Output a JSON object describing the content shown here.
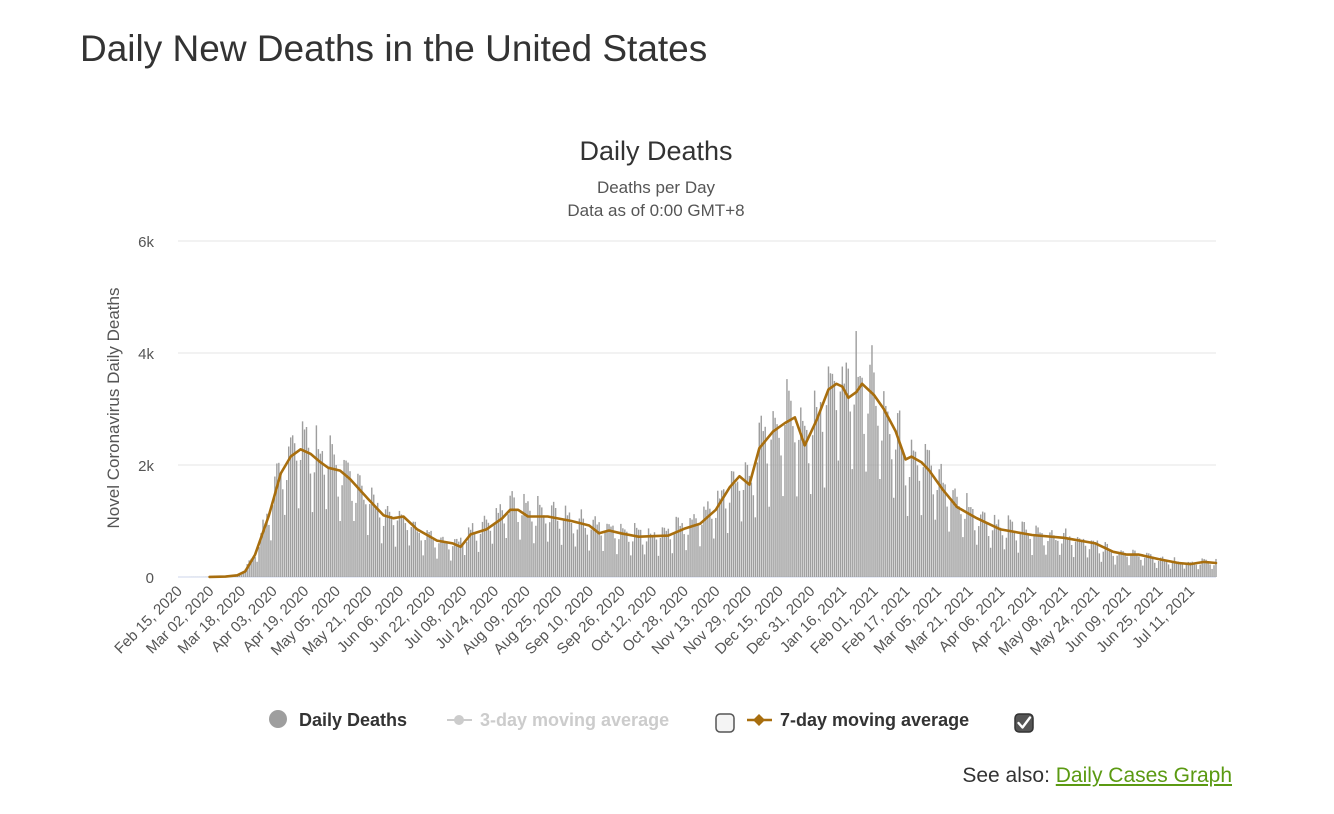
{
  "page": {
    "title": "Daily New Deaths in the United States",
    "see_also_prefix": "See also:",
    "see_also_link": "Daily Cases Graph"
  },
  "colors": {
    "bars": "#9e9e9e",
    "ma7": "#a86e0e",
    "ma3_disabled": "#cccccc",
    "grid": "#e6e6e6",
    "text": "#333333",
    "link": "#5b9a12"
  },
  "chart_data": {
    "type": "bar",
    "title": "Daily Deaths",
    "subtitle": [
      "Deaths per Day",
      "Data as of 0:00 GMT+8"
    ],
    "ylabel": "Novel Coronavirus Daily Deaths",
    "ylim": [
      0,
      6000
    ],
    "yticks": [
      0,
      2000,
      4000,
      6000
    ],
    "ytick_labels": [
      "0",
      "2k",
      "4k",
      "6k"
    ],
    "xlim": [
      "2020-02-15",
      "2021-07-24"
    ],
    "x_tick_labels": [
      "Feb 15, 2020",
      "Mar 02, 2020",
      "Mar 18, 2020",
      "Apr 03, 2020",
      "Apr 19, 2020",
      "May 05, 2020",
      "May 21, 2020",
      "Jun 06, 2020",
      "Jun 22, 2020",
      "Jul 08, 2020",
      "Jul 24, 2020",
      "Aug 09, 2020",
      "Aug 25, 2020",
      "Sep 10, 2020",
      "Sep 26, 2020",
      "Oct 12, 2020",
      "Oct 28, 2020",
      "Nov 13, 2020",
      "Nov 29, 2020",
      "Dec 15, 2020",
      "Dec 31, 2020",
      "Jan 16, 2021",
      "Feb 01, 2021",
      "Feb 17, 2021",
      "Mar 05, 2021",
      "Mar 21, 2021",
      "Apr 06, 2021",
      "Apr 22, 2021",
      "May 08, 2021",
      "May 24, 2021",
      "Jun 09, 2021",
      "Jun 25, 2021",
      "Jul 11, 2021"
    ],
    "grid": true,
    "legend_placement": "bottom-center",
    "series": [
      {
        "name": "Daily Deaths",
        "type": "bar",
        "visible": true,
        "daily": true,
        "start": "2020-02-15",
        "end": "2021-07-24",
        "anchors": [
          [
            "2020-02-15",
            0
          ],
          [
            "2020-03-02",
            2
          ],
          [
            "2020-03-12",
            10
          ],
          [
            "2020-03-18",
            50
          ],
          [
            "2020-03-25",
            400
          ],
          [
            "2020-04-01",
            1100
          ],
          [
            "2020-04-07",
            1900
          ],
          [
            "2020-04-12",
            2150
          ],
          [
            "2020-04-17",
            2300
          ],
          [
            "2020-04-22",
            2200
          ],
          [
            "2020-05-01",
            1950
          ],
          [
            "2020-05-10",
            1800
          ],
          [
            "2020-05-21",
            1350
          ],
          [
            "2020-06-01",
            1000
          ],
          [
            "2020-06-08",
            1050
          ],
          [
            "2020-06-15",
            800
          ],
          [
            "2020-06-25",
            650
          ],
          [
            "2020-07-05",
            550
          ],
          [
            "2020-07-12",
            780
          ],
          [
            "2020-07-24",
            1000
          ],
          [
            "2020-08-01",
            1200
          ],
          [
            "2020-08-10",
            1100
          ],
          [
            "2020-08-25",
            1050
          ],
          [
            "2020-09-10",
            900
          ],
          [
            "2020-09-26",
            780
          ],
          [
            "2020-10-12",
            720
          ],
          [
            "2020-10-28",
            850
          ],
          [
            "2020-11-13",
            1200
          ],
          [
            "2020-11-25",
            1700
          ],
          [
            "2020-11-30",
            1650
          ],
          [
            "2020-12-07",
            2350
          ],
          [
            "2020-12-15",
            2600
          ],
          [
            "2020-12-23",
            2850
          ],
          [
            "2020-12-28",
            2400
          ],
          [
            "2021-01-03",
            2800
          ],
          [
            "2021-01-09",
            3350
          ],
          [
            "2021-01-14",
            3400
          ],
          [
            "2021-01-18",
            3200
          ],
          [
            "2021-01-24",
            3350
          ],
          [
            "2021-02-01",
            3200
          ],
          [
            "2021-02-10",
            2600
          ],
          [
            "2021-02-17",
            2100
          ],
          [
            "2021-02-25",
            2050
          ],
          [
            "2021-03-05",
            1700
          ],
          [
            "2021-03-15",
            1300
          ],
          [
            "2021-03-25",
            1050
          ],
          [
            "2021-04-06",
            850
          ],
          [
            "2021-04-22",
            750
          ],
          [
            "2021-05-08",
            680
          ],
          [
            "2021-05-24",
            580
          ],
          [
            "2021-06-05",
            400
          ],
          [
            "2021-06-15",
            380
          ],
          [
            "2021-06-25",
            300
          ],
          [
            "2021-07-11",
            230
          ],
          [
            "2021-07-18",
            260
          ],
          [
            "2021-07-24",
            250
          ]
        ]
      },
      {
        "name": "3-day moving average",
        "type": "line",
        "visible": false,
        "checkbox_checked": false
      },
      {
        "name": "7-day moving average",
        "type": "line",
        "visible": true,
        "checkbox_checked": true,
        "points": [
          [
            "2020-03-02",
            2
          ],
          [
            "2020-03-10",
            8
          ],
          [
            "2020-03-16",
            30
          ],
          [
            "2020-03-20",
            100
          ],
          [
            "2020-03-25",
            400
          ],
          [
            "2020-04-01",
            1100
          ],
          [
            "2020-04-07",
            1850
          ],
          [
            "2020-04-12",
            2150
          ],
          [
            "2020-04-17",
            2280
          ],
          [
            "2020-04-22",
            2200
          ],
          [
            "2020-04-27",
            2050
          ],
          [
            "2020-05-01",
            1950
          ],
          [
            "2020-05-07",
            1900
          ],
          [
            "2020-05-12",
            1750
          ],
          [
            "2020-05-21",
            1400
          ],
          [
            "2020-05-29",
            1100
          ],
          [
            "2020-06-03",
            1050
          ],
          [
            "2020-06-08",
            1080
          ],
          [
            "2020-06-15",
            850
          ],
          [
            "2020-06-25",
            650
          ],
          [
            "2020-07-03",
            600
          ],
          [
            "2020-07-07",
            540
          ],
          [
            "2020-07-12",
            760
          ],
          [
            "2020-07-20",
            850
          ],
          [
            "2020-07-28",
            1050
          ],
          [
            "2020-08-01",
            1200
          ],
          [
            "2020-08-05",
            1200
          ],
          [
            "2020-08-10",
            1080
          ],
          [
            "2020-08-20",
            1080
          ],
          [
            "2020-09-01",
            1000
          ],
          [
            "2020-09-10",
            920
          ],
          [
            "2020-09-15",
            780
          ],
          [
            "2020-09-20",
            830
          ],
          [
            "2020-09-26",
            780
          ],
          [
            "2020-10-05",
            720
          ],
          [
            "2020-10-20",
            740
          ],
          [
            "2020-10-28",
            860
          ],
          [
            "2020-11-05",
            950
          ],
          [
            "2020-11-13",
            1200
          ],
          [
            "2020-11-20",
            1600
          ],
          [
            "2020-11-25",
            1800
          ],
          [
            "2020-11-30",
            1650
          ],
          [
            "2020-12-05",
            2300
          ],
          [
            "2020-12-12",
            2600
          ],
          [
            "2020-12-18",
            2750
          ],
          [
            "2020-12-23",
            2850
          ],
          [
            "2020-12-28",
            2350
          ],
          [
            "2021-01-03",
            2800
          ],
          [
            "2021-01-09",
            3350
          ],
          [
            "2021-01-13",
            3450
          ],
          [
            "2021-01-16",
            3400
          ],
          [
            "2021-01-19",
            3200
          ],
          [
            "2021-01-23",
            3300
          ],
          [
            "2021-01-26",
            3450
          ],
          [
            "2021-02-01",
            3250
          ],
          [
            "2021-02-06",
            3000
          ],
          [
            "2021-02-12",
            2600
          ],
          [
            "2021-02-17",
            2100
          ],
          [
            "2021-02-20",
            2150
          ],
          [
            "2021-02-25",
            2050
          ],
          [
            "2021-03-01",
            1900
          ],
          [
            "2021-03-08",
            1550
          ],
          [
            "2021-03-15",
            1250
          ],
          [
            "2021-03-25",
            1050
          ],
          [
            "2021-04-06",
            850
          ],
          [
            "2021-04-22",
            750
          ],
          [
            "2021-05-08",
            700
          ],
          [
            "2021-05-24",
            600
          ],
          [
            "2021-06-02",
            450
          ],
          [
            "2021-06-09",
            400
          ],
          [
            "2021-06-15",
            400
          ],
          [
            "2021-06-25",
            320
          ],
          [
            "2021-07-05",
            250
          ],
          [
            "2021-07-11",
            230
          ],
          [
            "2021-07-18",
            270
          ],
          [
            "2021-07-24",
            250
          ]
        ]
      }
    ]
  }
}
